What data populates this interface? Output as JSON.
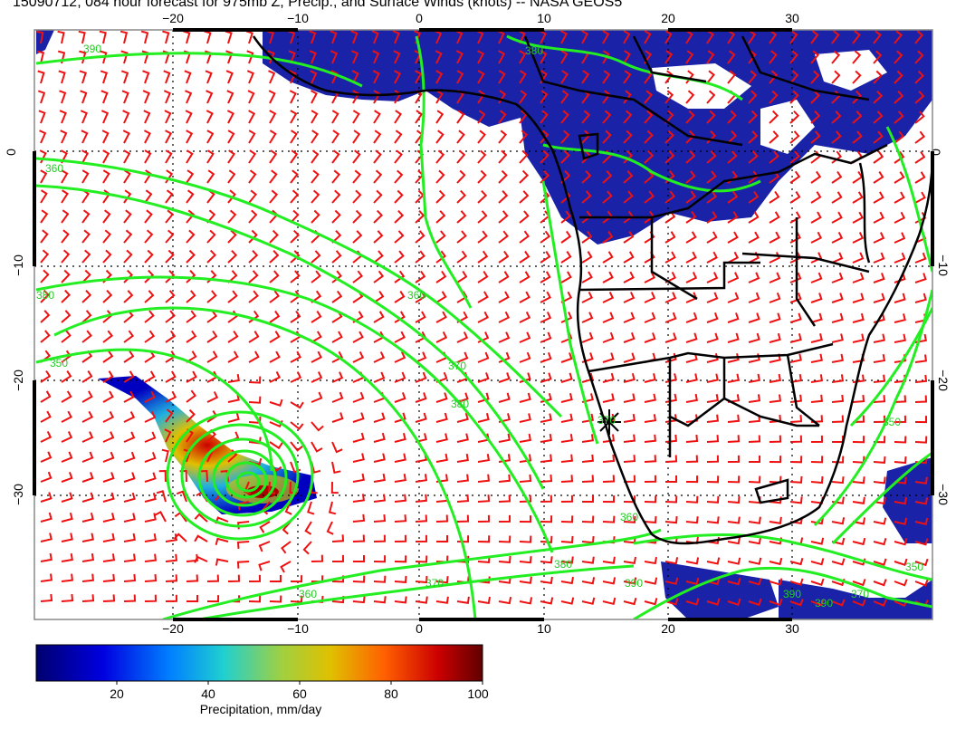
{
  "title": "15090712, 084 hour forecast for 975mb Z, Precip., and Surface Winds (knots) -- NASA GEOS5",
  "axes": {
    "lon_ticks": [
      "−20",
      "−10",
      "0",
      "10",
      "20",
      "30"
    ],
    "lat_ticks": [
      "0",
      "−10",
      "−20",
      "−30"
    ]
  },
  "contour_labels": [
    "390",
    "380",
    "370",
    "360",
    "350",
    "380",
    "370",
    "360",
    "390",
    "380",
    "360",
    "350",
    "370",
    "380",
    "390",
    "390",
    "370",
    "360",
    "350"
  ],
  "colorbar": {
    "title": "Precipitation, mm/day",
    "tick_labels": [
      "20",
      "40",
      "60",
      "80",
      "100"
    ],
    "colors": [
      "#00008b",
      "#0000ff",
      "#00bfff",
      "#7fffd4",
      "#c8c800",
      "#ff8c00",
      "#cc0000",
      "#5a0000"
    ]
  },
  "colors": {
    "contour": "#22ee22",
    "barb": "#ee1111",
    "coast": "#000000",
    "precip_low": "#1a1aa0"
  },
  "marker": "storm-center-cross"
}
